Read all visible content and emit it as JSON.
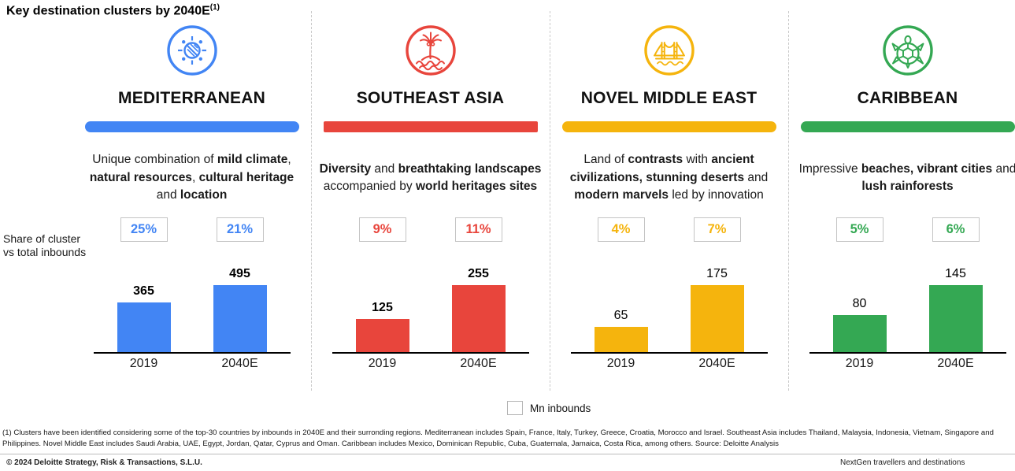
{
  "title": {
    "text": "Key destination clusters by 2040E",
    "superscript": "(1)"
  },
  "share_label": {
    "line1": "Share of cluster",
    "line2": "vs total inbounds"
  },
  "legend": {
    "label": "Mn inbounds"
  },
  "clusters": [
    {
      "name": "MEDITERRANEAN",
      "icon": "sun-icon",
      "color": "#4285F4",
      "description": [
        {
          "t": "Unique combination of ",
          "b": false
        },
        {
          "t": "mild climate",
          "b": true
        },
        {
          "t": ", ",
          "b": false
        },
        {
          "t": "natural resources",
          "b": true
        },
        {
          "t": ", ",
          "b": false
        },
        {
          "t": "cultural heritage",
          "b": true
        },
        {
          "t": " and ",
          "b": false
        },
        {
          "t": "location",
          "b": true
        }
      ],
      "shares": [
        "25%",
        "21%"
      ]
    },
    {
      "name": "SOUTHEAST ASIA",
      "icon": "palm-island-icon",
      "color": "#E8453C",
      "description": [
        {
          "t": "Diversity",
          "b": true
        },
        {
          "t": " and ",
          "b": false
        },
        {
          "t": "breathtaking landscapes",
          "b": true
        },
        {
          "t": " accompanied by ",
          "b": false
        },
        {
          "t": "world heritages sites",
          "b": true
        }
      ],
      "shares": [
        "9%",
        "11%"
      ]
    },
    {
      "name": "NOVEL MIDDLE EAST",
      "icon": "bridge-icon",
      "color": "#F5B40D",
      "description": [
        {
          "t": "Land of ",
          "b": false
        },
        {
          "t": "contrasts",
          "b": true
        },
        {
          "t": " with ",
          "b": false
        },
        {
          "t": "ancient civilizations, stunning deserts",
          "b": true
        },
        {
          "t": " and ",
          "b": false
        },
        {
          "t": "modern marvels",
          "b": true
        },
        {
          "t": " led by innovation",
          "b": false
        }
      ],
      "shares": [
        "4%",
        "7%"
      ]
    },
    {
      "name": "CARIBBEAN",
      "icon": "turtle-icon",
      "color": "#34A853",
      "description": [
        {
          "t": "Impressive ",
          "b": false
        },
        {
          "t": "beaches, vibrant cities",
          "b": true
        },
        {
          "t": " and ",
          "b": false
        },
        {
          "t": "lush rainforests",
          "b": true
        }
      ],
      "shares": [
        "5%",
        "6%"
      ]
    }
  ],
  "chart_data": [
    {
      "type": "bar",
      "cluster": "MEDITERRANEAN",
      "categories": [
        "2019",
        "2040E"
      ],
      "values": [
        365,
        495
      ],
      "unit": "Mn inbounds",
      "color": "#4285F4",
      "value_labels_bold": true,
      "share_vs_total_inbounds": [
        "25%",
        "21%"
      ]
    },
    {
      "type": "bar",
      "cluster": "SOUTHEAST ASIA",
      "categories": [
        "2019",
        "2040E"
      ],
      "values": [
        125,
        255
      ],
      "unit": "Mn inbounds",
      "color": "#E8453C",
      "value_labels_bold": true,
      "share_vs_total_inbounds": [
        "9%",
        "11%"
      ]
    },
    {
      "type": "bar",
      "cluster": "NOVEL MIDDLE EAST",
      "categories": [
        "2019",
        "2040E"
      ],
      "values": [
        65,
        175
      ],
      "unit": "Mn inbounds",
      "color": "#F5B40D",
      "value_labels_bold": false,
      "share_vs_total_inbounds": [
        "4%",
        "7%"
      ]
    },
    {
      "type": "bar",
      "cluster": "CARIBBEAN",
      "categories": [
        "2019",
        "2040E"
      ],
      "values": [
        80,
        145
      ],
      "unit": "Mn inbounds",
      "color": "#34A853",
      "value_labels_bold": false,
      "share_vs_total_inbounds": [
        "5%",
        "6%"
      ]
    }
  ],
  "footnote": "(1) Clusters have been identified considering some of the top-30 countries by inbounds in 2040E and their surronding regions. Mediterranean includes Spain, France, Italy, Turkey, Greece, Croatia, Morocco and Israel. Southeast Asia includes Thailand, Malaysia, Indonesia, Vietnam, Singapore and Philippines. Novel Middle East includes Saudi Arabia, UAE, Egypt, Jordan, Qatar, Cyprus and Oman. Caribbean includes Mexico, Dominican Republic, Cuba, Guatemala, Jamaica, Costa Rica, among others. Source: Deloitte Analysis",
  "footer": {
    "copyright": "© 2024 Deloitte Strategy, Risk & Transactions, S.L.U.",
    "doc_title": "NextGen travellers and destinations"
  }
}
